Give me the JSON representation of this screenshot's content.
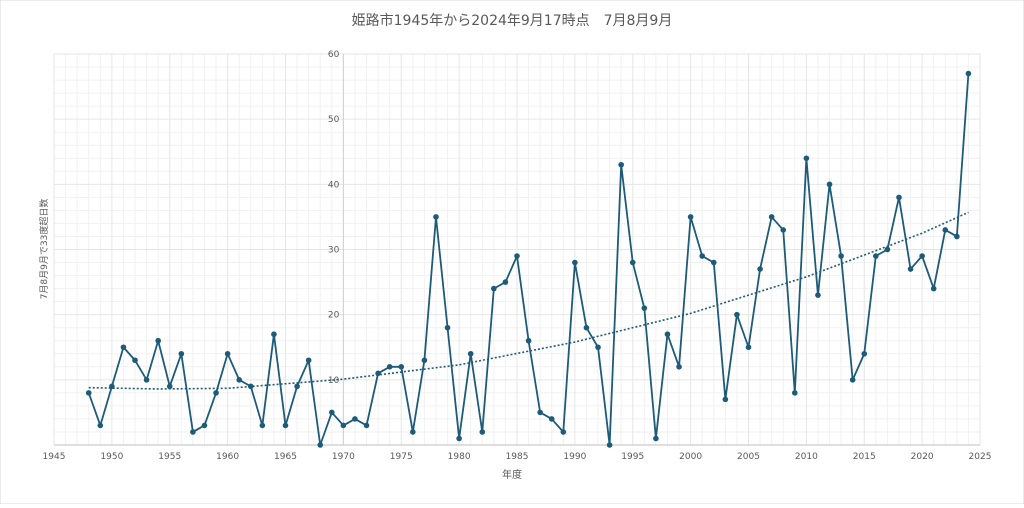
{
  "chart_data": {
    "type": "line",
    "title": "姫路市1945年から2024年9月17時点　7月8月9月",
    "xlabel": "年度",
    "ylabel": "7月8月9月で33度超日数",
    "xlim": [
      1945,
      2025
    ],
    "ylim": [
      0,
      60
    ],
    "x_ticks": [
      "1945",
      "1950",
      "1955",
      "1960",
      "1965",
      "1970",
      "1975",
      "1980",
      "1985",
      "1990",
      "1995",
      "2000",
      "2005",
      "2010",
      "2015",
      "2020",
      "2025"
    ],
    "x_tick_values": [
      1945,
      1950,
      1955,
      1960,
      1965,
      1970,
      1975,
      1980,
      1985,
      1990,
      1995,
      2000,
      2005,
      2010,
      2015,
      2020,
      2025
    ],
    "y_ticks": [
      "10",
      "20",
      "30",
      "40",
      "50",
      "60"
    ],
    "y_tick_values": [
      10,
      20,
      30,
      40,
      50,
      60
    ],
    "grid": true,
    "series": [
      {
        "x": [
          1948,
          1949,
          1950,
          1951,
          1952,
          1953,
          1954,
          1955,
          1956,
          1957,
          1958,
          1959,
          1960,
          1961,
          1962,
          1963,
          1964,
          1965,
          1966,
          1967,
          1968,
          1969,
          1970,
          1971,
          1972,
          1973,
          1974,
          1975,
          1976,
          1977,
          1978,
          1979,
          1980,
          1981,
          1982,
          1983,
          1984,
          1985,
          1986,
          1987,
          1988,
          1989,
          1990,
          1991,
          1992,
          1993,
          1994,
          1995,
          1996,
          1997,
          1998,
          1999,
          2000,
          2001,
          2002,
          2003,
          2004,
          2005,
          2006,
          2007,
          2008,
          2009,
          2010,
          2011,
          2012,
          2013,
          2014,
          2015,
          2016,
          2017,
          2018,
          2019,
          2020,
          2021,
          2022,
          2023,
          2024
        ],
        "values": [
          8,
          3,
          9,
          15,
          13,
          10,
          16,
          9,
          14,
          2,
          3,
          8,
          14,
          10,
          9,
          3,
          17,
          3,
          9,
          13,
          0,
          5,
          3,
          4,
          3,
          11,
          12,
          12,
          2,
          13,
          35,
          18,
          1,
          14,
          2,
          24,
          25,
          29,
          16,
          5,
          4,
          2,
          28,
          18,
          15,
          0,
          43,
          28,
          21,
          1,
          17,
          12,
          35,
          29,
          28,
          7,
          20,
          15,
          27,
          35,
          33,
          8,
          44,
          23,
          40,
          29,
          10,
          14,
          29,
          30,
          38,
          27,
          29,
          24,
          33,
          32,
          57
        ]
      }
    ],
    "trendline": {
      "type": "polynomial",
      "x": [
        1948,
        1954,
        1960,
        1970,
        1980,
        1990,
        2000,
        2010,
        2020,
        2024
      ],
      "values": [
        8.8,
        8.6,
        8.7,
        10.1,
        12.3,
        15.8,
        20.2,
        25.8,
        32.5,
        35.7
      ]
    },
    "colors": {
      "line": "#1d5b79",
      "trend": "#1d5b79",
      "grid": "#e6e6e6",
      "text": "#595959"
    }
  }
}
